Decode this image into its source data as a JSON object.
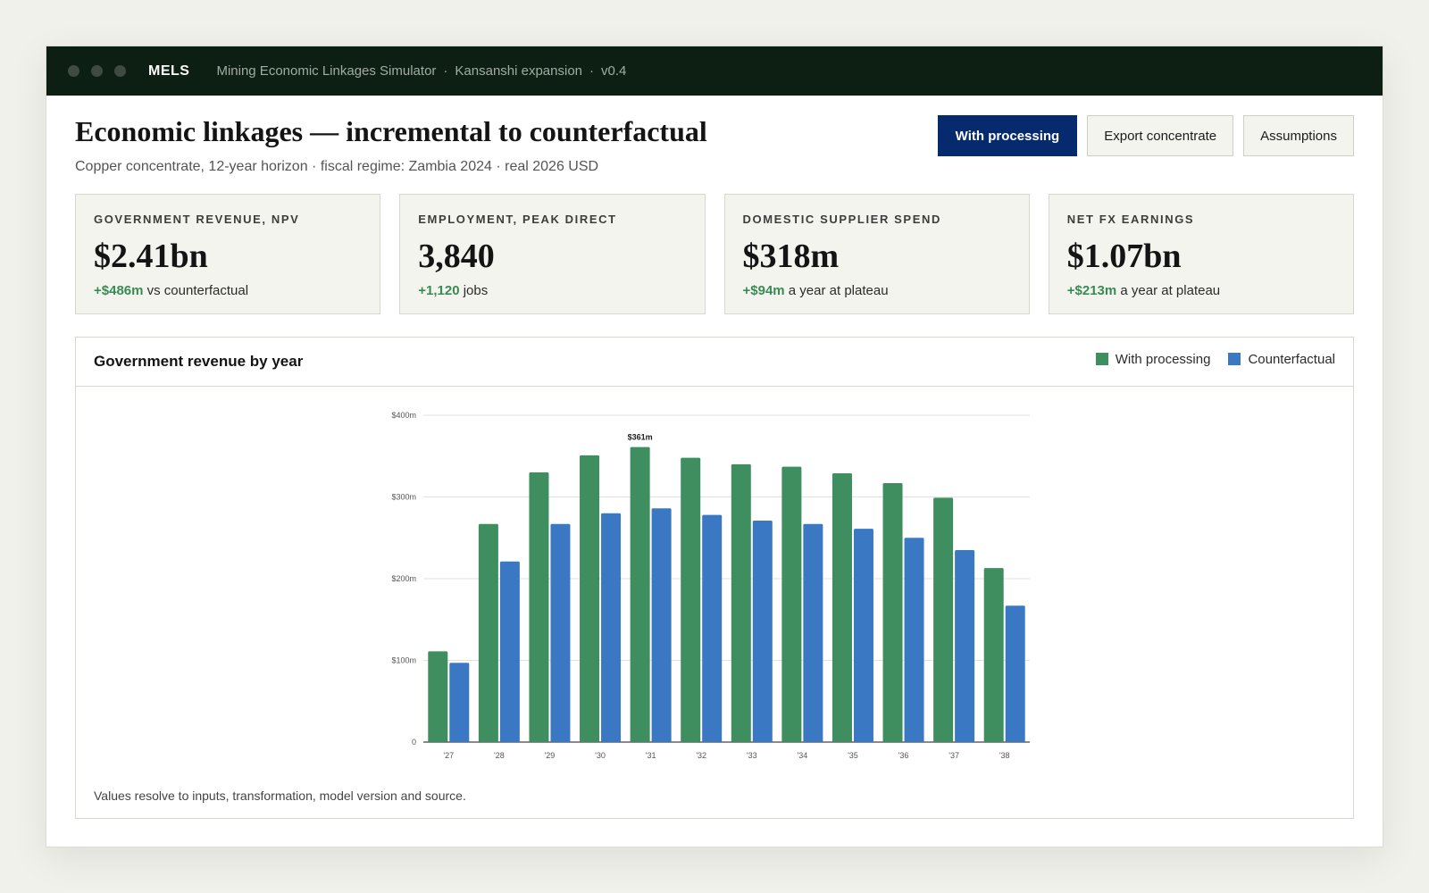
{
  "titlebar": {
    "app_name": "MELS",
    "crumbs": [
      "Mining Economic Linkages Simulator",
      "Kansanshi expansion",
      "v0.4"
    ]
  },
  "header": {
    "title": "Economic linkages — incremental to counterfactual",
    "subtitle": "Copper concentrate, 12-year horizon · fiscal regime: Zambia 2024 · real 2026 USD"
  },
  "actions": {
    "with_processing": "With processing",
    "export_concentrate": "Export concentrate",
    "assumptions": "Assumptions"
  },
  "kpis": [
    {
      "label": "GOVERNMENT REVENUE, NPV",
      "value": "$2.41bn",
      "delta": "+$486m",
      "delta_text": " vs counterfactual"
    },
    {
      "label": "EMPLOYMENT, PEAK DIRECT",
      "value": "3,840",
      "delta": "+1,120",
      "delta_text": " jobs"
    },
    {
      "label": "DOMESTIC SUPPLIER SPEND",
      "value": "$318m",
      "delta": "+$94m",
      "delta_text": " a year at plateau"
    },
    {
      "label": "NET FX EARNINGS",
      "value": "$1.07bn",
      "delta": "+$213m",
      "delta_text": " a year at plateau"
    }
  ],
  "chart_panel": {
    "title": "Government revenue by year",
    "footnote": "Values resolve to inputs, transformation, model version and source."
  },
  "colors": {
    "with_processing": "#3e8e5f",
    "counterfactual": "#3b78c4",
    "primary_button": "#062a6e",
    "positive_delta": "#3a8a55"
  },
  "chart_data": {
    "type": "bar",
    "title": "Government revenue by year",
    "xlabel": "",
    "ylabel": "",
    "categories": [
      "'27",
      "'28",
      "'29",
      "'30",
      "'31",
      "'32",
      "'33",
      "'34",
      "'35",
      "'36",
      "'37",
      "'38"
    ],
    "series": [
      {
        "name": "With processing",
        "values": [
          111,
          267,
          330,
          351,
          361,
          348,
          340,
          337,
          329,
          317,
          299,
          213
        ]
      },
      {
        "name": "Counterfactual",
        "values": [
          97,
          221,
          267,
          280,
          286,
          278,
          271,
          267,
          261,
          250,
          235,
          167
        ]
      }
    ],
    "ylim": [
      0,
      400
    ],
    "yticks": [
      0,
      100,
      200,
      300,
      400
    ],
    "ytick_labels": [
      "0",
      "$100m",
      "$200m",
      "$300m",
      "$400m"
    ],
    "annotations": [
      {
        "category": "'31",
        "series": "With processing",
        "label": "$361m"
      }
    ],
    "grid": true,
    "legend": "top-right"
  }
}
